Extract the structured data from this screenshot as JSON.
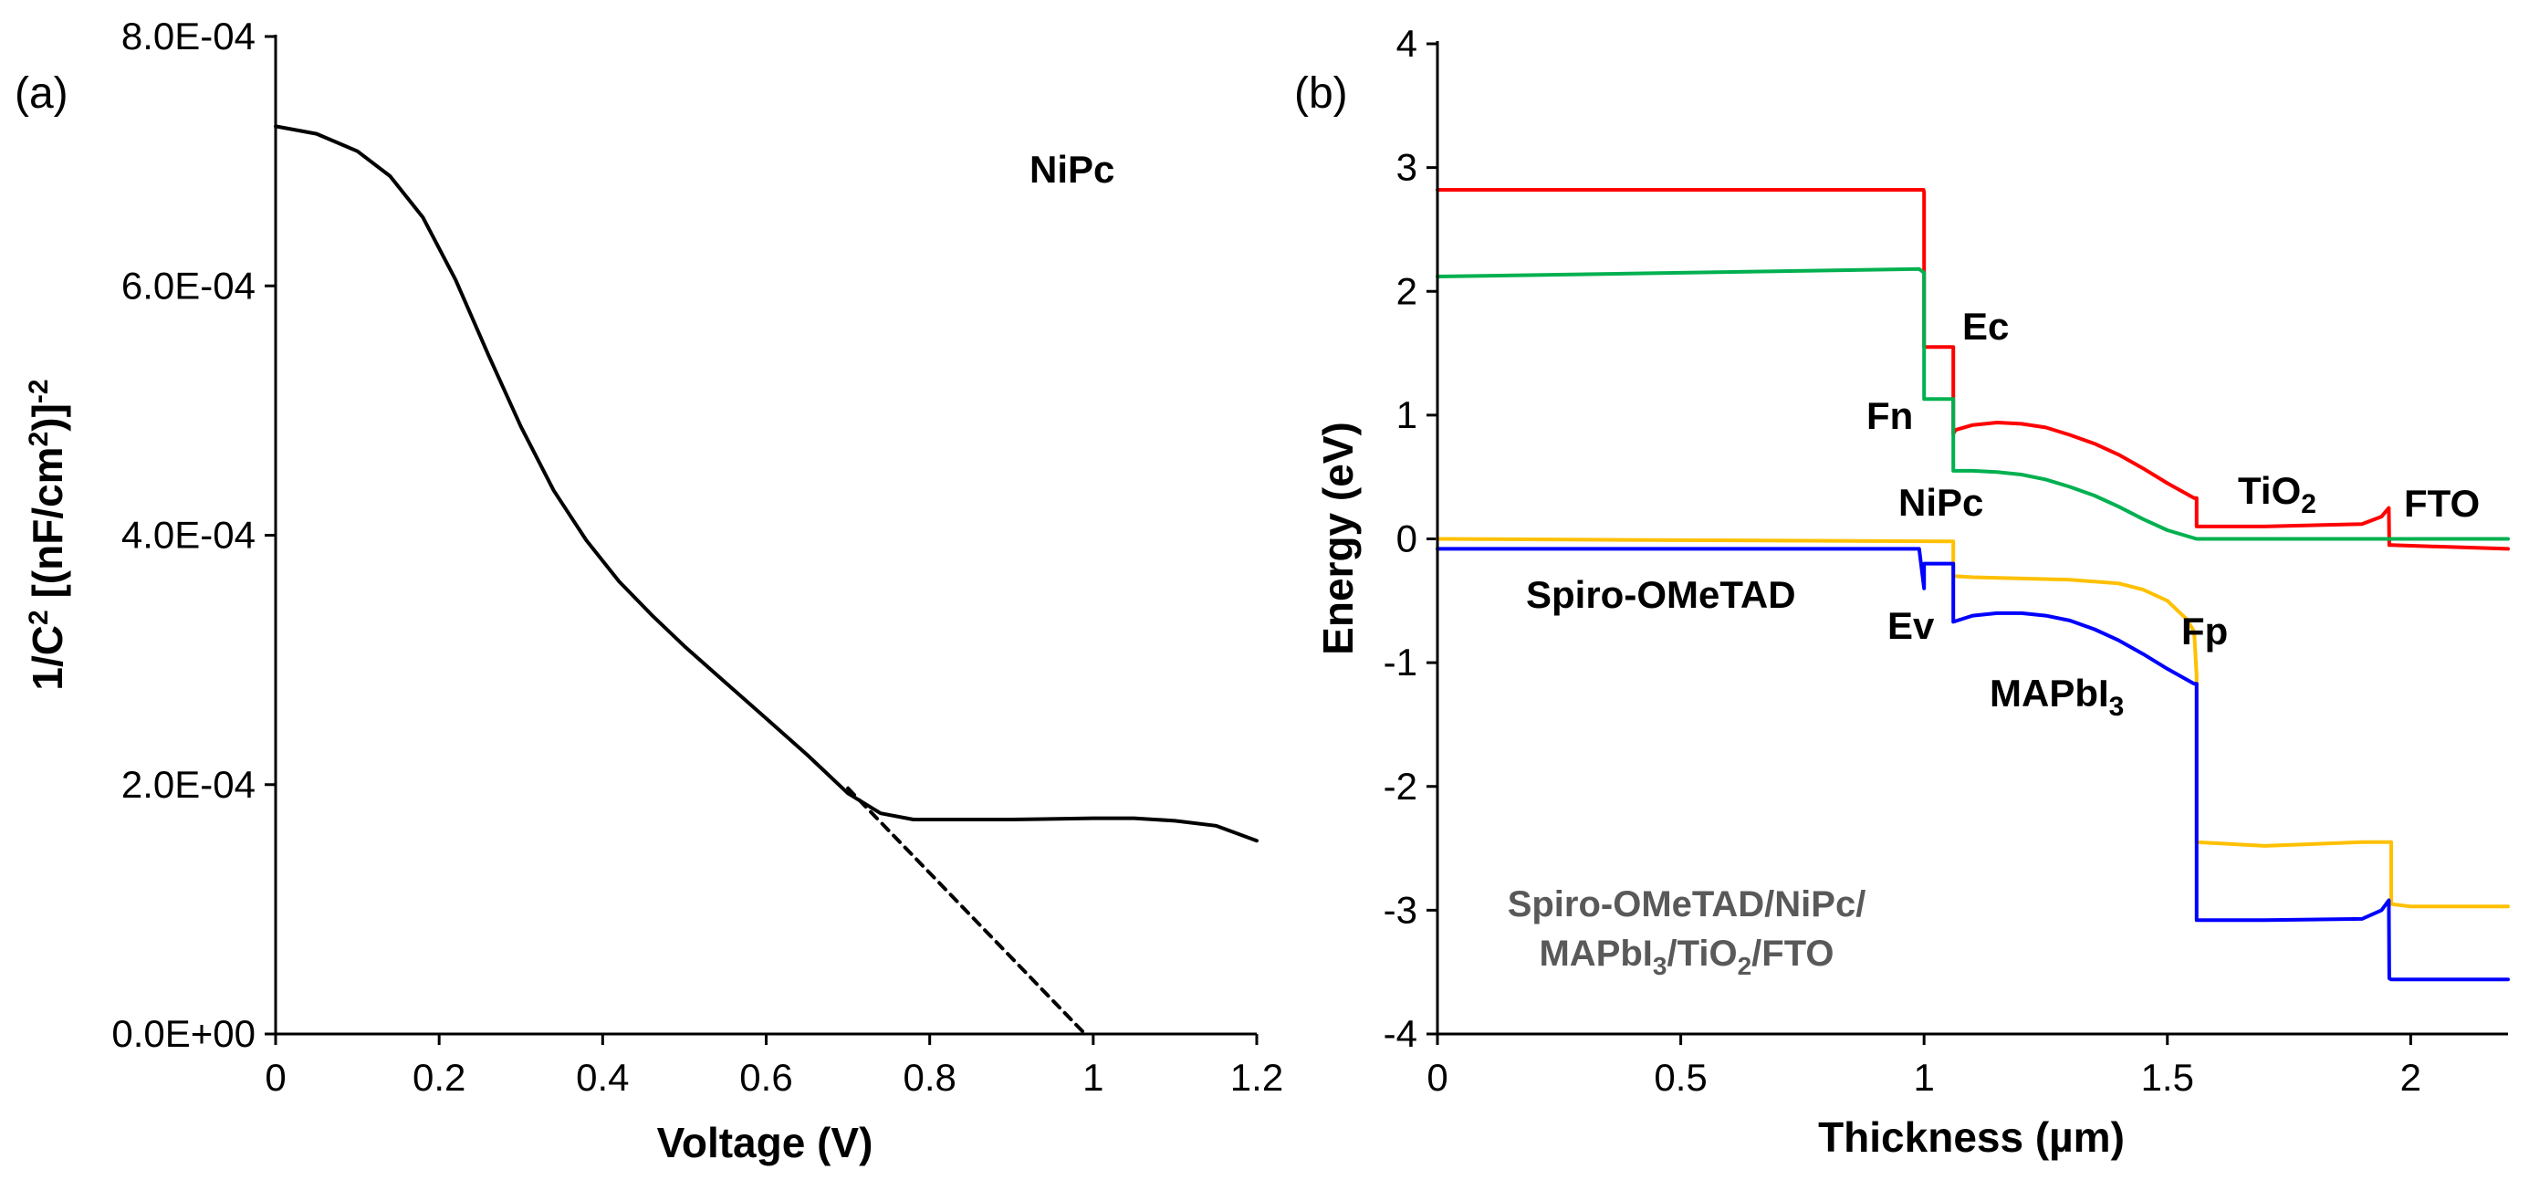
{
  "chart_data": [
    {
      "panel": "(a)",
      "type": "line",
      "title": "",
      "xlabel": "Voltage (V)",
      "ylabel_main": "1/C",
      "ylabel_sup": "2",
      "ylabel_rest": " [(nF/cm",
      "ylabel_sup2": "2",
      "ylabel_end": ")]",
      "ylabel_sup3": "-2",
      "xlim": [
        0,
        1.2
      ],
      "ylim": [
        0,
        0.0008
      ],
      "xticks": [
        "0",
        "0.2",
        "0.4",
        "0.6",
        "0.8",
        "1",
        "1.2"
      ],
      "xtick_values": [
        0,
        0.2,
        0.4,
        0.6,
        0.8,
        1.0,
        1.2
      ],
      "yticks": [
        "0.0E+00",
        "2.0E-04",
        "4.0E-04",
        "6.0E-04",
        "8.0E-04"
      ],
      "ytick_values": [
        0,
        0.0002,
        0.0004,
        0.0006,
        0.0008
      ],
      "annotation": "NiPc",
      "series": [
        {
          "name": "NiPc",
          "style": "solid",
          "color": "#000000",
          "x": [
            0,
            0.05,
            0.1,
            0.14,
            0.18,
            0.22,
            0.26,
            0.3,
            0.34,
            0.38,
            0.42,
            0.46,
            0.5,
            0.55,
            0.6,
            0.65,
            0.7,
            0.74,
            0.78,
            0.85,
            0.9,
            1.0,
            1.05,
            1.1,
            1.15,
            1.2
          ],
          "y": [
            0.000728,
            0.000722,
            0.000708,
            0.000688,
            0.000655,
            0.000605,
            0.000545,
            0.000487,
            0.000436,
            0.000396,
            0.000363,
            0.000336,
            0.000311,
            0.000282,
            0.000253,
            0.000224,
            0.000193,
            0.000177,
            0.000172,
            0.000172,
            0.000172,
            0.000173,
            0.000173,
            0.000171,
            0.000167,
            0.000155
          ]
        },
        {
          "name": "linear fit",
          "style": "dashed",
          "color": "#000000",
          "x": [
            0.7,
            0.99
          ],
          "y": [
            0.000197,
            0.0
          ]
        }
      ]
    },
    {
      "panel": "(b)",
      "type": "line",
      "title": "",
      "xlabel": "Thickness (µm)",
      "ylabel": "Energy (eV)",
      "xlim": [
        0,
        2.2
      ],
      "ylim": [
        -4,
        4
      ],
      "xticks": [
        "0",
        "0.5",
        "1",
        "1.5",
        "2"
      ],
      "xtick_values": [
        0,
        0.5,
        1.0,
        1.5,
        2.0
      ],
      "yticks": [
        "-4",
        "-3",
        "-2",
        "-1",
        "0",
        "1",
        "2",
        "3",
        "4"
      ],
      "ytick_values": [
        -4,
        -3,
        -2,
        -1,
        0,
        1,
        2,
        3,
        4
      ],
      "annotations": {
        "ec": "Ec",
        "fn": "Fn",
        "nipc": "NiPc",
        "tio2_base": "TiO",
        "tio2_sub": "2",
        "fto": "FTO",
        "spiro": "Spiro-OMeTAD",
        "ev": "Ev",
        "fp": "Fp",
        "mapbi_base": "MAPbI",
        "mapbi_sub": "3",
        "stack_line1": "Spiro-OMeTAD/NiPc/",
        "stack_line2_a": "MAPbI",
        "stack_line2_sub1": "3",
        "stack_line2_b": "/TiO",
        "stack_line2_sub2": "2",
        "stack_line2_c": "/FTO"
      },
      "series": [
        {
          "name": "Ec",
          "color": "#ff0000",
          "x": [
            0,
            0.999,
            1.0,
            1.0,
            1.06,
            1.06,
            1.065,
            1.1,
            1.15,
            1.2,
            1.25,
            1.3,
            1.35,
            1.4,
            1.45,
            1.5,
            1.555,
            1.56,
            1.56,
            1.7,
            1.9,
            1.94,
            1.955,
            1.956,
            1.96,
            2.2
          ],
          "y": [
            2.82,
            2.82,
            2.8,
            1.55,
            1.55,
            0.85,
            0.88,
            0.92,
            0.94,
            0.93,
            0.9,
            0.84,
            0.77,
            0.68,
            0.57,
            0.45,
            0.33,
            0.33,
            0.1,
            0.1,
            0.12,
            0.18,
            0.25,
            -0.05,
            -0.05,
            -0.08
          ]
        },
        {
          "name": "Fn",
          "color": "#00b050",
          "x": [
            0,
            0.5,
            0.99,
            1.0,
            1.0,
            1.06,
            1.06,
            1.1,
            1.15,
            1.2,
            1.25,
            1.3,
            1.35,
            1.4,
            1.45,
            1.5,
            1.56,
            1.7,
            1.9,
            2.0,
            2.2
          ],
          "y": [
            2.12,
            2.15,
            2.18,
            2.15,
            1.13,
            1.13,
            0.55,
            0.55,
            0.54,
            0.52,
            0.48,
            0.42,
            0.35,
            0.26,
            0.16,
            0.07,
            0.0,
            0.0,
            0.0,
            0.0,
            0.0
          ]
        },
        {
          "name": "Fp",
          "color": "#ffc000",
          "x": [
            0,
            0.5,
            1.06,
            1.06,
            1.1,
            1.2,
            1.3,
            1.4,
            1.45,
            1.5,
            1.54,
            1.555,
            1.56,
            1.56,
            1.7,
            1.9,
            1.955,
            1.96,
            1.96,
            2.0,
            2.2
          ],
          "y": [
            0.0,
            -0.01,
            -0.02,
            -0.3,
            -0.31,
            -0.32,
            -0.33,
            -0.36,
            -0.41,
            -0.5,
            -0.65,
            -0.75,
            -1.1,
            -2.45,
            -2.48,
            -2.45,
            -2.45,
            -2.45,
            -2.95,
            -2.97,
            -2.97
          ]
        },
        {
          "name": "Ev",
          "color": "#0000ff",
          "x": [
            0,
            0.5,
            0.99,
            1.0,
            1.0,
            1.06,
            1.06,
            1.1,
            1.15,
            1.2,
            1.25,
            1.3,
            1.35,
            1.4,
            1.45,
            1.5,
            1.555,
            1.56,
            1.56,
            1.7,
            1.9,
            1.94,
            1.955,
            1.956,
            1.96,
            2.2
          ],
          "y": [
            -0.08,
            -0.08,
            -0.08,
            -0.4,
            -0.2,
            -0.2,
            -0.67,
            -0.62,
            -0.6,
            -0.6,
            -0.62,
            -0.66,
            -0.73,
            -0.82,
            -0.93,
            -1.05,
            -1.17,
            -1.17,
            -3.08,
            -3.08,
            -3.07,
            -3.0,
            -2.92,
            -3.55,
            -3.56,
            -3.56
          ]
        }
      ]
    }
  ]
}
